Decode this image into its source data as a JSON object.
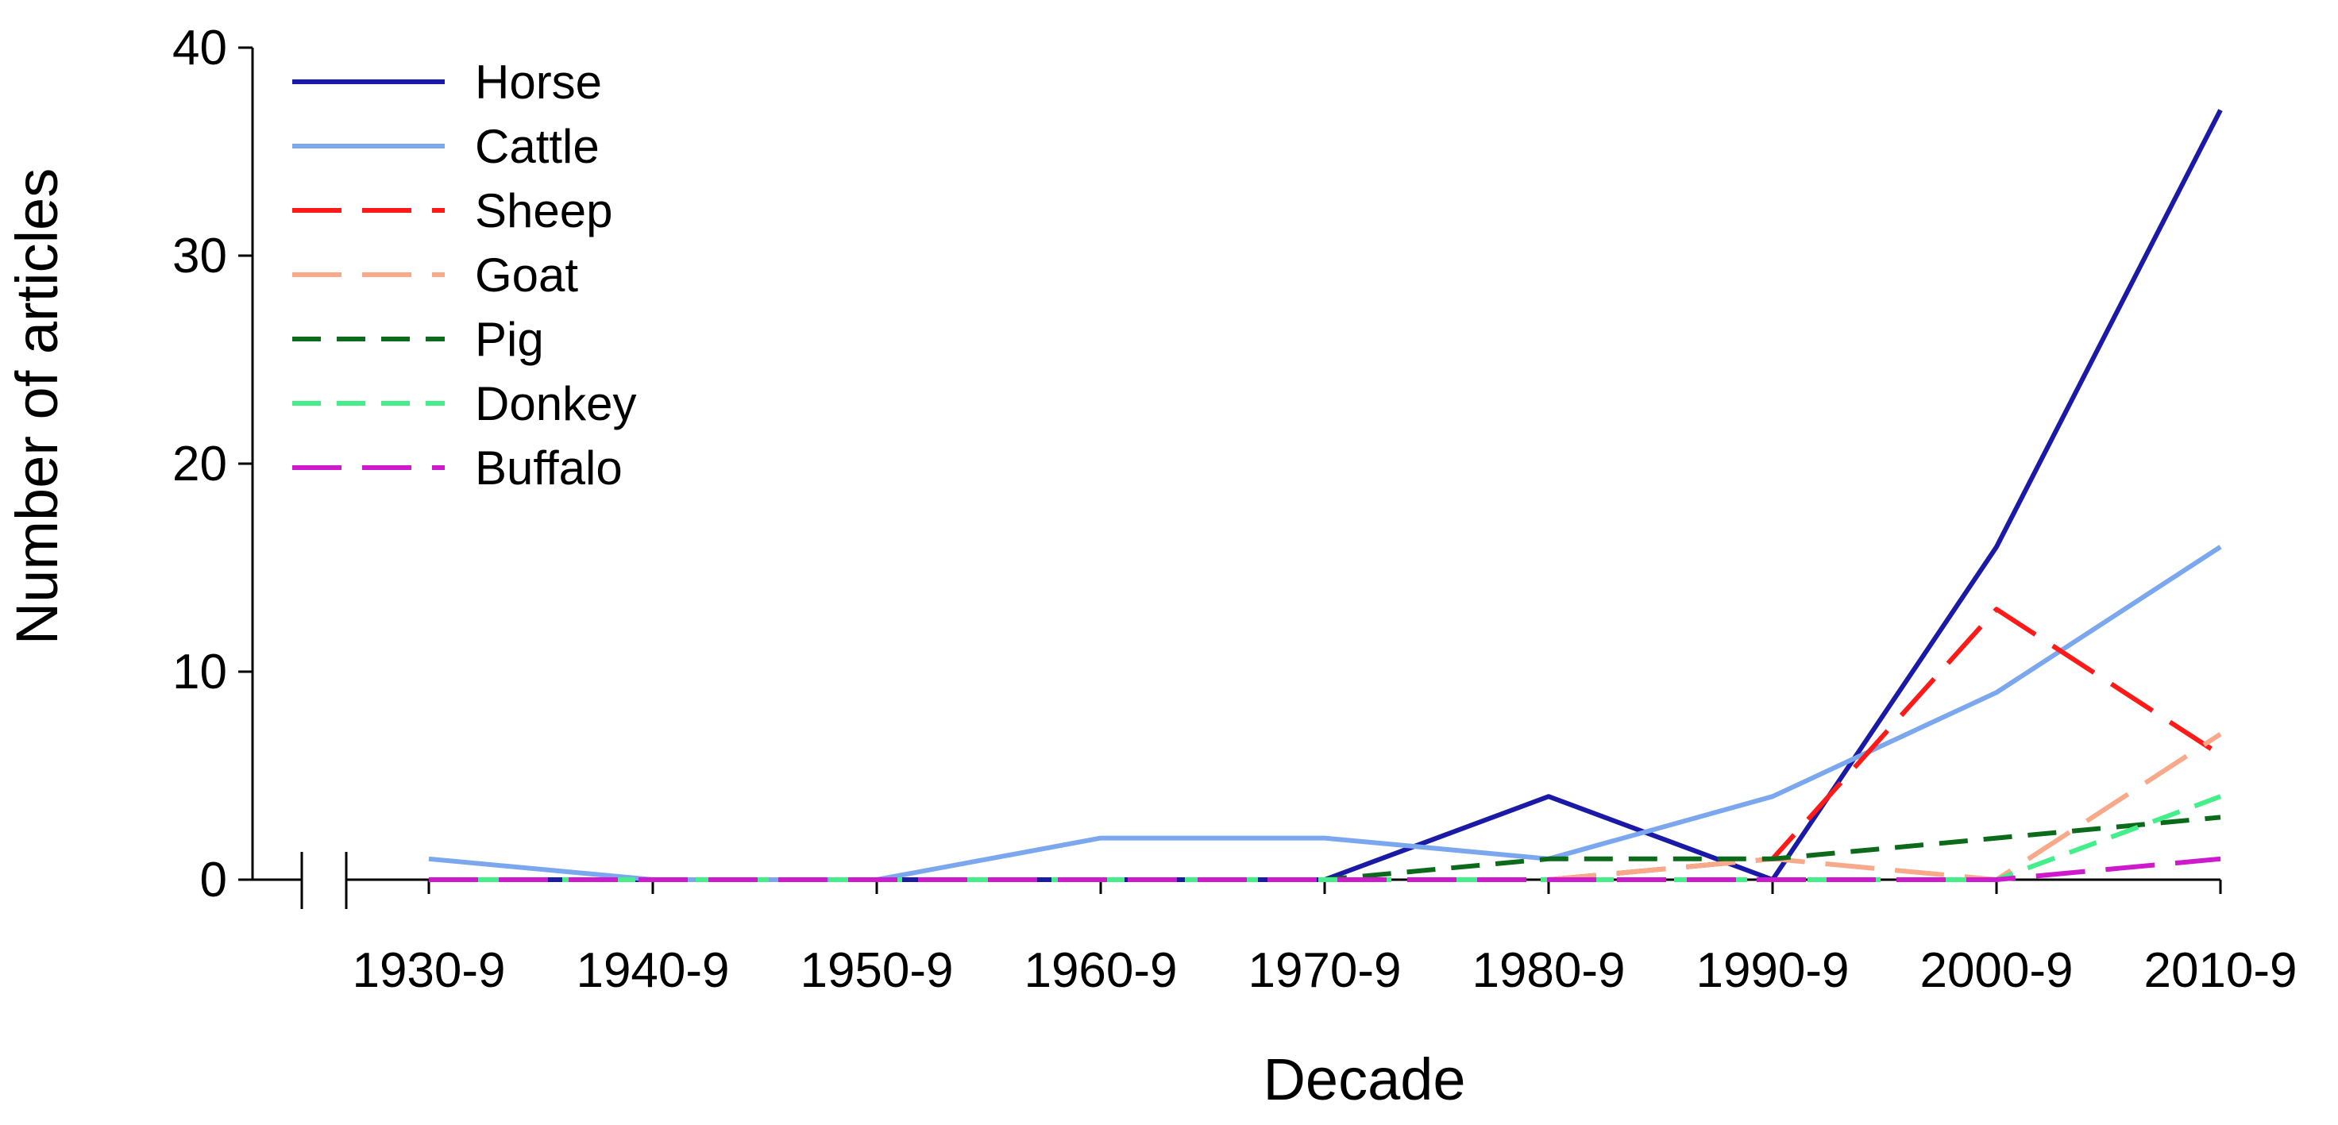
{
  "chart_data": {
    "type": "line",
    "title": "",
    "xlabel": "Decade",
    "ylabel": "Number of articles",
    "categories": [
      "1930-9",
      "1940-9",
      "1950-9",
      "1960-9",
      "1970-9",
      "1980-9",
      "1990-9",
      "2000-9",
      "2010-9"
    ],
    "ylim": [
      0,
      40
    ],
    "yticks": [
      "0",
      "10",
      "20",
      "30",
      "40"
    ],
    "grid": false,
    "legend_position": "top-left",
    "axis_break": true,
    "series": [
      {
        "name": "Horse",
        "color": "#1a1aa6",
        "style": "solid",
        "values": [
          0,
          0,
          0,
          0,
          0,
          4,
          0,
          16,
          37
        ]
      },
      {
        "name": "Cattle",
        "color": "#7ba7ee",
        "style": "solid",
        "values": [
          1,
          0,
          0,
          2,
          2,
          1,
          4,
          9,
          16
        ]
      },
      {
        "name": "Sheep",
        "color": "#ff1a1a",
        "style": "long-dash",
        "values": [
          0,
          0,
          0,
          0,
          0,
          0,
          1,
          13,
          6
        ]
      },
      {
        "name": "Goat",
        "color": "#f8a98a",
        "style": "long-dash",
        "values": [
          0,
          0,
          0,
          0,
          0,
          0,
          1,
          0,
          7
        ]
      },
      {
        "name": "Pig",
        "color": "#0b6b1a",
        "style": "short-dash",
        "values": [
          0,
          0,
          0,
          0,
          0,
          1,
          1,
          2,
          3
        ]
      },
      {
        "name": "Donkey",
        "color": "#44ee88",
        "style": "short-dash",
        "values": [
          0,
          0,
          0,
          0,
          0,
          0,
          0,
          0,
          4
        ]
      },
      {
        "name": "Buffalo",
        "color": "#cc1acc",
        "style": "long-dash",
        "values": [
          0,
          0,
          0,
          0,
          0,
          0,
          0,
          0,
          1
        ]
      }
    ]
  }
}
